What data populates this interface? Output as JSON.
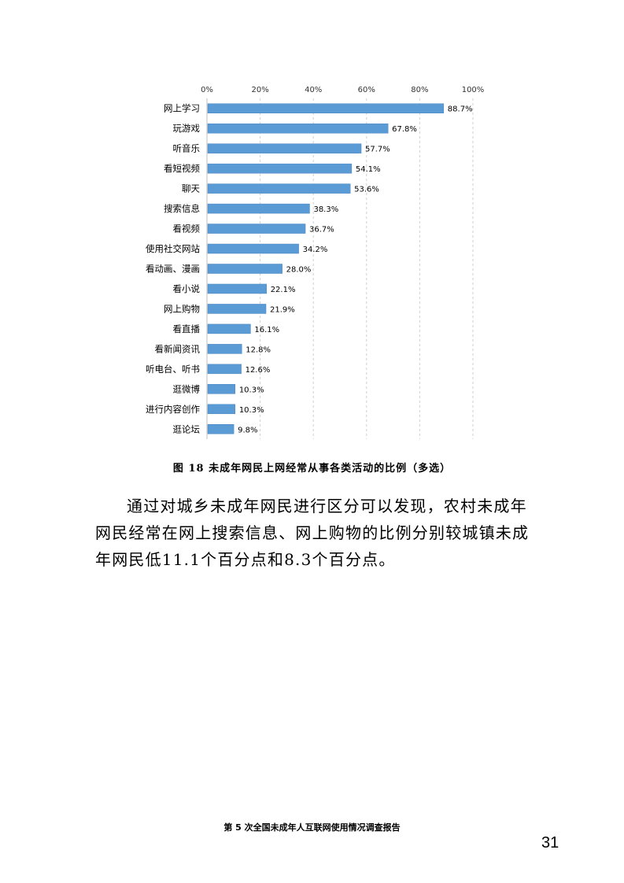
{
  "chart_data": {
    "type": "bar",
    "orientation": "horizontal",
    "categories": [
      "网上学习",
      "玩游戏",
      "听音乐",
      "看短视频",
      "聊天",
      "搜索信息",
      "看视频",
      "使用社交网站",
      "看动画、漫画",
      "看小说",
      "网上购物",
      "看直播",
      "看新闻资讯",
      "听电台、听书",
      "逛微博",
      "进行内容创作",
      "逛论坛"
    ],
    "values": [
      88.7,
      67.8,
      57.7,
      54.1,
      53.6,
      38.3,
      36.7,
      34.2,
      28.0,
      22.1,
      21.9,
      16.1,
      12.8,
      12.6,
      10.3,
      10.3,
      9.8
    ],
    "value_labels": [
      "88.7%",
      "67.8%",
      "57.7%",
      "54.1%",
      "53.6%",
      "38.3%",
      "36.7%",
      "34.2%",
      "28.0%",
      "22.1%",
      "21.9%",
      "16.1%",
      "12.8%",
      "12.6%",
      "10.3%",
      "10.3%",
      "9.8%"
    ],
    "x_ticks": [
      "0%",
      "20%",
      "40%",
      "60%",
      "80%",
      "100%"
    ],
    "xlim": [
      0,
      100
    ],
    "axis_position": "top",
    "grid": true,
    "bar_color": "#5b9bd5"
  },
  "caption": "图 18  未成年网民上网经常从事各类活动的比例（多选）",
  "paragraph": "通过对城乡未成年网民进行区分可以发现，农村未成年网民经常在网上搜索信息、网上购物的比例分别较城镇未成年网民低11.1个百分点和8.3个百分点。",
  "footer": {
    "title": "第 5 次全国未成年人互联网使用情况调查报告",
    "page_number": "31"
  }
}
